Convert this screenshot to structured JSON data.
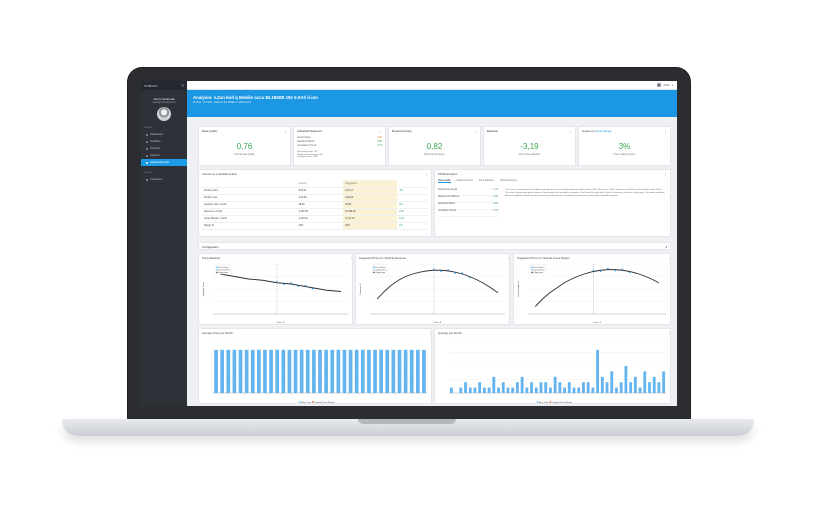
{
  "sidebar": {
    "brand": "STIBOON",
    "user_name": "Artan Cankimak",
    "user_sub": "trader@company.com",
    "section_main": "PAGES",
    "items": [
      {
        "label": "Dashboard",
        "icon": "dashboard-icon"
      },
      {
        "label": "Variables",
        "icon": "variables-icon"
      },
      {
        "label": "Products",
        "icon": "products-icon"
      },
      {
        "label": "Analysis",
        "icon": "analysis-icon"
      },
      {
        "label": "Analysis Results",
        "icon": "analysis-results-icon",
        "active": true
      }
    ],
    "section_other": "OTHER",
    "other_items": [
      {
        "label": "Customers",
        "icon": "customers-icon"
      }
    ]
  },
  "topbar": {
    "user": "Artan"
  },
  "banner": {
    "title": "Analysis: v.Zan kod q Mobile occu BL1850B 18v 5.0Ah li-ion",
    "subtitle": "Product: 1771190 · Added to the WEEK on 2020-04-01"
  },
  "kpis": [
    {
      "title": "Data Quality",
      "value": "0,76",
      "caption": "Overall data quality"
    },
    {
      "title": "Individual Measures",
      "rows": [
        [
          "Good history",
          "0,60"
        ],
        [
          "Statistical Model",
          "0,86"
        ],
        [
          "Correlation Check",
          "0,79"
        ]
      ],
      "foot": [
        "Data history length: 79%",
        "Number of items in range: 94%",
        "Correlation check: 100%"
      ]
    },
    {
      "title": "Model Accuracy",
      "value": "0,82",
      "caption": "Model R2 accuracy"
    },
    {
      "title": "Elasticity",
      "value": "-3,19",
      "caption": "Price price elasticity"
    },
    {
      "title": "Impact on",
      "link": "Gross Margin",
      "value": "3%",
      "caption": "Price change impact"
    }
  ],
  "metrics": {
    "title": "Current vs. potential metrics",
    "headers": [
      "",
      "Current",
      "Suggested",
      ""
    ],
    "rows": [
      [
        "Product price",
        "9,85,21",
        "9,21,27",
        "-5%"
      ],
      [
        "Product cost",
        "4,90,08",
        "4,90,08",
        ""
      ],
      [
        "Quantity sold / month",
        "48,58",
        "48,58",
        "0%"
      ],
      [
        "Revenue / month",
        "9,187,68",
        "11,098,38",
        "21%"
      ],
      [
        "Gross Margin / month",
        "4,143,00",
        "4,714,13",
        "14%"
      ],
      [
        "Margin %",
        "24%",
        "25%",
        "1%"
      ]
    ]
  },
  "kpi_desc": {
    "title": "KPI Description",
    "tabs": [
      "Data Quality",
      "Model Accuracy",
      "Price Elasticity",
      "Added Measures"
    ],
    "list": [
      [
        "Data history length",
        "0,79"
      ],
      [
        "Data points sufficient",
        "0,94"
      ],
      [
        "Statistical Model",
        "0,86"
      ],
      [
        "Correlation Check",
        "0,79"
      ]
    ],
    "text": "This score is computed as the weighted average of the 4 scores below: Amount of data points (50%), Mean error (10%), Variance error (30%) and correlation check (10%). The score is determined by the amount of data points that the model is trained on. Each week (or day) with at least 1 transaction counts as a data point. The model calculates different candidate models and selects the best performing one. Correlation between price and quantity should be negative."
  },
  "config": {
    "title": "Configuration"
  },
  "chart_data": [
    {
      "type": "scatter",
      "title": "Price Elasticity",
      "legend": [
        "Price Points",
        "Selected Price",
        "Regression"
      ],
      "xlabel": "Price, $",
      "ylabel": "Quantity, items",
      "x": [
        1,
        2,
        3,
        4,
        5,
        6,
        7,
        8,
        9,
        10,
        11,
        12,
        13,
        14,
        15,
        16,
        17,
        18
      ],
      "y": [
        3.2,
        3.1,
        3.0,
        2.9,
        2.8,
        2.75,
        2.7,
        2.6,
        2.5,
        2.45,
        2.4,
        2.3,
        2.2,
        2.1,
        2.0,
        1.9,
        1.85,
        1.8
      ]
    },
    {
      "type": "line",
      "title": "Suggested Price for Optimal Revenue",
      "legend": [
        "Price Points",
        "Optimal Price",
        "Regression"
      ],
      "xlabel": "Price, $",
      "ylabel": "Revenue, $",
      "x": [
        1,
        2,
        3,
        4,
        5,
        6,
        7,
        8,
        9,
        10,
        11,
        12,
        13,
        14,
        15,
        16,
        17,
        18
      ],
      "y": [
        1.2,
        1.8,
        2.3,
        2.7,
        3.0,
        3.2,
        3.35,
        3.45,
        3.5,
        3.5,
        3.45,
        3.35,
        3.2,
        3.0,
        2.75,
        2.45,
        2.1,
        1.7
      ]
    },
    {
      "type": "line",
      "title": "Suggested Price for Optimal Gross Margin",
      "legend": [
        "Price Points",
        "Optimal Price",
        "Regression"
      ],
      "xlabel": "Price, $",
      "ylabel": "Gross Margin, $",
      "x": [
        1,
        2,
        3,
        4,
        5,
        6,
        7,
        8,
        9,
        10,
        11,
        12,
        13,
        14,
        15,
        16,
        17,
        18
      ],
      "y": [
        0.6,
        1.2,
        1.7,
        2.1,
        2.5,
        2.8,
        3.05,
        3.25,
        3.4,
        3.5,
        3.55,
        3.55,
        3.5,
        3.4,
        3.25,
        3.05,
        2.8,
        2.5
      ]
    },
    {
      "type": "bar",
      "title": "Average Price per Month",
      "legend": [
        "Avg. Price",
        "Optimal Price Month"
      ],
      "values": [
        8,
        8,
        8,
        8,
        8,
        8,
        8,
        8,
        8,
        8,
        8,
        8,
        8,
        8,
        8,
        8,
        8,
        8,
        8,
        8,
        8,
        8,
        8,
        8,
        8,
        8,
        8,
        8,
        8,
        8,
        8,
        8,
        8,
        8,
        8
      ],
      "ylim": [
        0,
        10
      ]
    },
    {
      "type": "bar",
      "title": "Quantity per Month",
      "legend": [
        "Avg. Price",
        "Optimal Price Month"
      ],
      "values": [
        1,
        0,
        1,
        2,
        1,
        1,
        2,
        1,
        1,
        3,
        1,
        2,
        1,
        1,
        2,
        3,
        1,
        2,
        1,
        2,
        2,
        1,
        3,
        2,
        1,
        2,
        1,
        1,
        2,
        2,
        1,
        8,
        3,
        2,
        4,
        1,
        2,
        5,
        2,
        3,
        1,
        4,
        2,
        3,
        2,
        4
      ],
      "ylim": [
        0,
        10
      ]
    }
  ],
  "colors": {
    "accent": "#1b97e3",
    "good": "#35a64a",
    "bar": "#64b5ef",
    "sidebar": "#2e3138"
  }
}
